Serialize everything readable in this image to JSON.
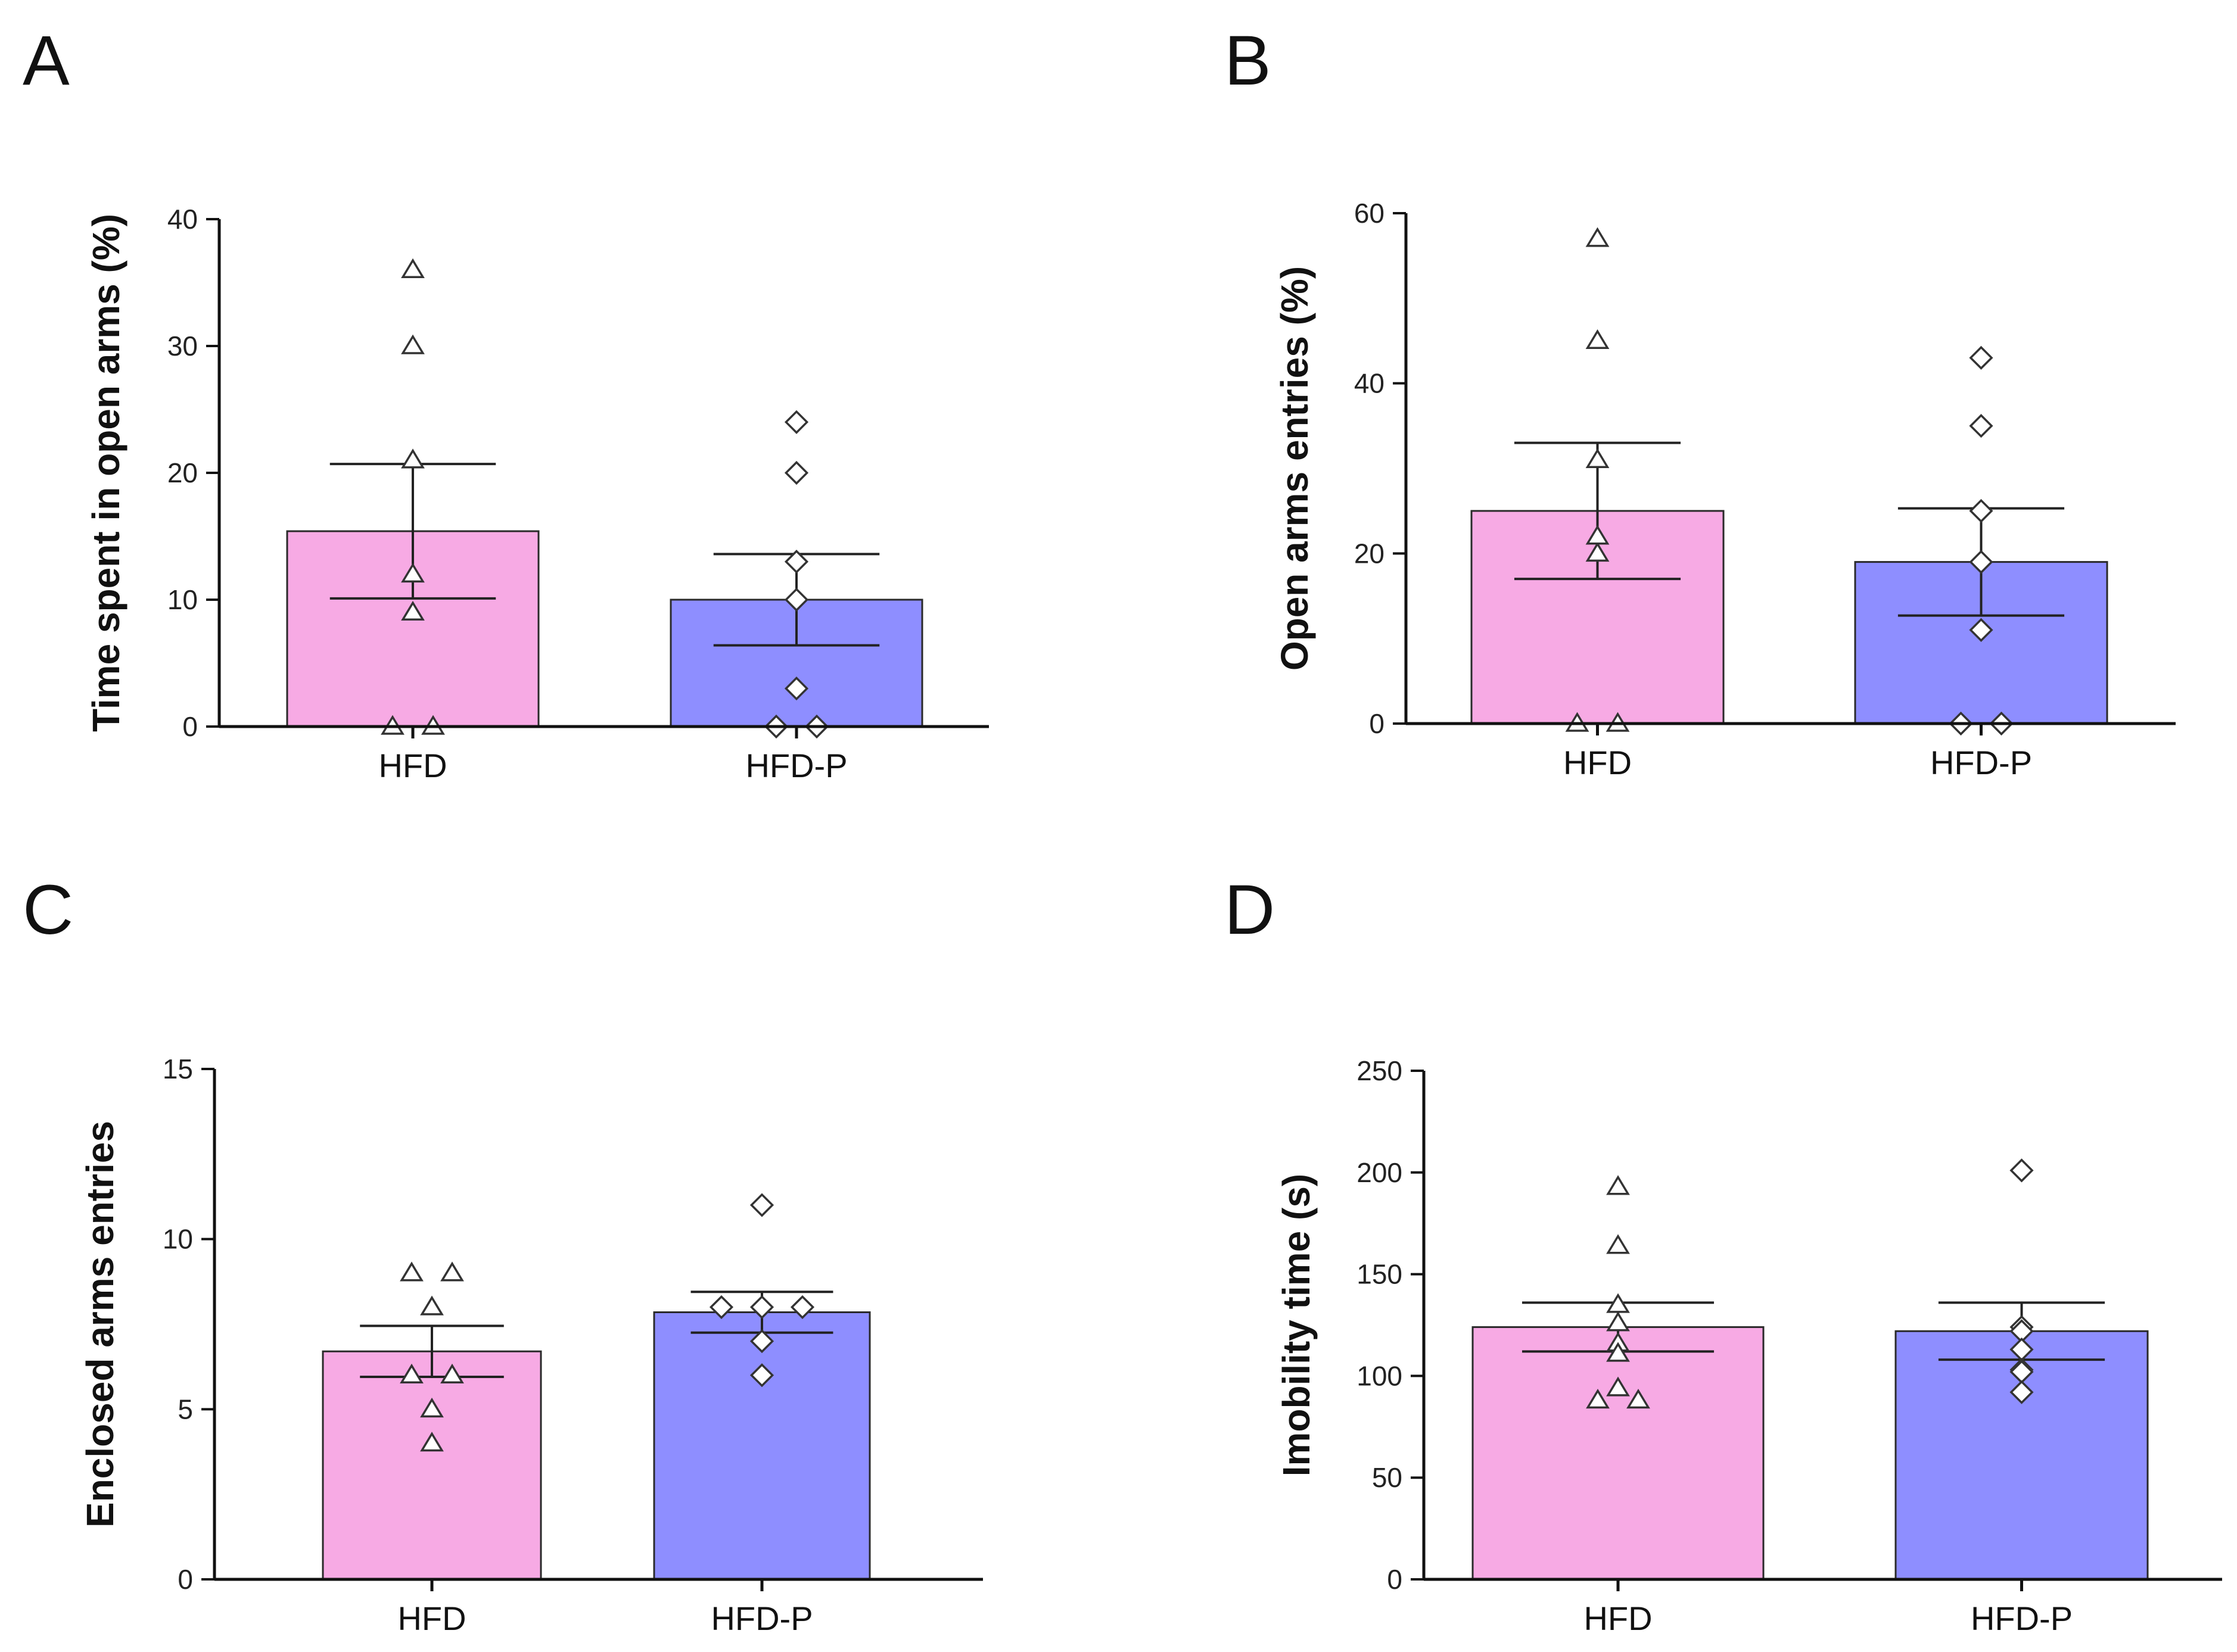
{
  "colors": {
    "hfd": "#F7AAE4",
    "hfdp": "#8E8EFF",
    "axis": "#111111",
    "marker_fill": "#ffffff"
  },
  "chart_data": [
    {
      "panel": "A",
      "type": "bar",
      "ylabel": "Time spent  in open arms (%)",
      "ylim": [
        0,
        40
      ],
      "yticks": [
        0,
        10,
        20,
        30,
        40
      ],
      "categories": [
        "HFD",
        "HFD-P"
      ],
      "series": [
        {
          "name": "HFD",
          "mean": 15.4,
          "sem": 5.3,
          "marker": "triangle",
          "points": [
            36,
            30,
            21,
            12,
            9,
            0,
            0
          ]
        },
        {
          "name": "HFD-P",
          "mean": 10.0,
          "sem": 3.6,
          "marker": "diamond",
          "points": [
            24,
            20,
            13,
            10,
            3,
            0,
            0
          ]
        }
      ]
    },
    {
      "panel": "B",
      "type": "bar",
      "ylabel": "Open arms entries (%)",
      "ylim": [
        0,
        60
      ],
      "yticks": [
        0,
        20,
        40,
        60
      ],
      "categories": [
        "HFD",
        "HFD-P"
      ],
      "series": [
        {
          "name": "HFD",
          "mean": 25.0,
          "sem": 8.0,
          "marker": "triangle",
          "points": [
            57,
            45,
            31,
            20,
            22,
            0,
            0
          ]
        },
        {
          "name": "HFD-P",
          "mean": 19.0,
          "sem": 6.3,
          "marker": "diamond",
          "points": [
            43,
            35,
            25,
            19,
            11,
            0,
            0
          ]
        }
      ]
    },
    {
      "panel": "C",
      "type": "bar",
      "ylabel": "Enclosed arms entries",
      "ylim": [
        0,
        15
      ],
      "yticks": [
        0,
        5,
        10,
        15
      ],
      "categories": [
        "HFD",
        "HFD-P"
      ],
      "series": [
        {
          "name": "HFD",
          "mean": 6.7,
          "sem": 0.75,
          "marker": "triangle",
          "points": [
            9,
            9,
            8,
            6,
            6,
            5,
            4
          ]
        },
        {
          "name": "HFD-P",
          "mean": 7.85,
          "sem": 0.6,
          "marker": "diamond",
          "points": [
            11,
            8,
            8,
            8,
            7,
            6
          ]
        }
      ]
    },
    {
      "panel": "D",
      "type": "bar",
      "ylabel": "Imobility time (s)",
      "ylim": [
        0,
        250
      ],
      "yticks": [
        0,
        50,
        100,
        150,
        200,
        250
      ],
      "categories": [
        "HFD",
        "HFD-P"
      ],
      "series": [
        {
          "name": "HFD",
          "mean": 124,
          "sem": 12,
          "marker": "triangle",
          "points": [
            193,
            164,
            135,
            126,
            116,
            111,
            94,
            88,
            88
          ]
        },
        {
          "name": "HFD-P",
          "mean": 122,
          "sem": 14,
          "marker": "diamond",
          "points": [
            201,
            124,
            122,
            113,
            103,
            102,
            92
          ]
        }
      ]
    }
  ]
}
